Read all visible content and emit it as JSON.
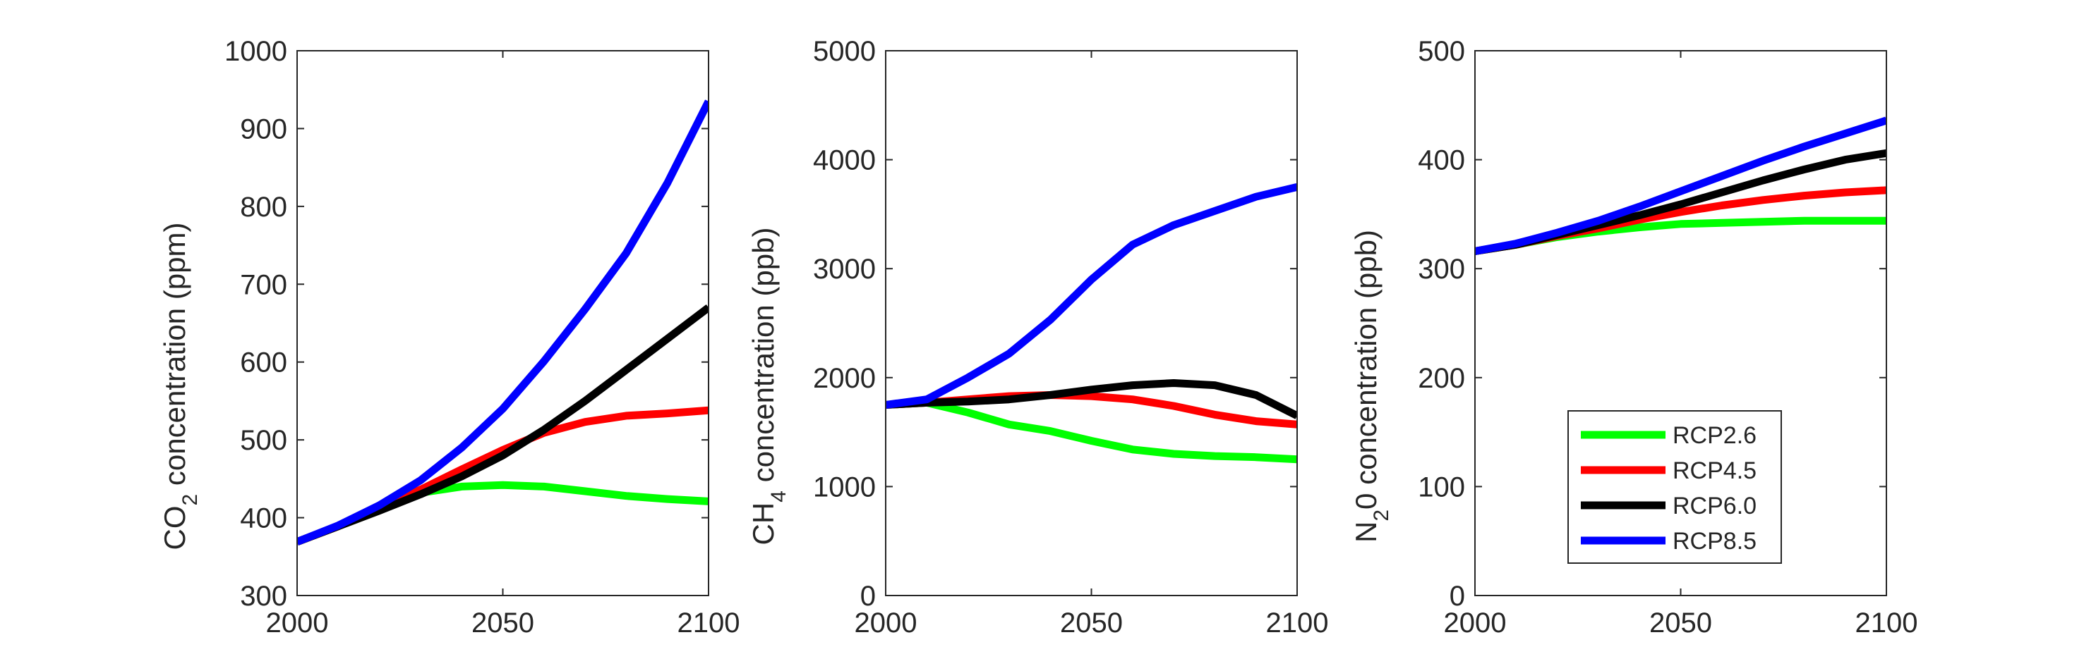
{
  "colors": {
    "RCP2.6": "#00ff00",
    "RCP4.5": "#ff0000",
    "RCP6.0": "#000000",
    "RCP8.5": "#0000ff",
    "axis": "#262626",
    "background": "#ffffff"
  },
  "chart_data": [
    {
      "type": "line",
      "ylabel_main": "CO",
      "ylabel_sub": "2",
      "ylabel_rest": " concentration (ppm)",
      "xlim": [
        2000,
        2100
      ],
      "ylim": [
        300,
        1000
      ],
      "xticks": [
        2000,
        2050,
        2100
      ],
      "yticks": [
        300,
        400,
        500,
        600,
        700,
        800,
        900,
        1000
      ],
      "grid": false,
      "series": [
        {
          "name": "RCP2.6",
          "x": [
            2000,
            2010,
            2020,
            2030,
            2040,
            2050,
            2060,
            2070,
            2080,
            2090,
            2100
          ],
          "values": [
            369,
            389,
            412,
            432,
            440,
            442,
            440,
            434,
            428,
            424,
            421
          ]
        },
        {
          "name": "RCP4.5",
          "x": [
            2000,
            2010,
            2020,
            2030,
            2040,
            2050,
            2060,
            2070,
            2080,
            2090,
            2100
          ],
          "values": [
            369,
            389,
            412,
            436,
            462,
            487,
            509,
            523,
            531,
            534,
            538
          ]
        },
        {
          "name": "RCP6.0",
          "x": [
            2000,
            2010,
            2020,
            2030,
            2040,
            2050,
            2060,
            2070,
            2080,
            2090,
            2100
          ],
          "values": [
            369,
            389,
            409,
            430,
            453,
            480,
            513,
            550,
            590,
            630,
            670
          ]
        },
        {
          "name": "RCP8.5",
          "x": [
            2000,
            2010,
            2020,
            2030,
            2040,
            2050,
            2060,
            2070,
            2080,
            2090,
            2100
          ],
          "values": [
            369,
            390,
            416,
            448,
            490,
            540,
            601,
            668,
            740,
            830,
            935
          ]
        }
      ]
    },
    {
      "type": "line",
      "ylabel_main": "CH",
      "ylabel_sub": "4",
      "ylabel_rest": " concentration (ppb)",
      "xlim": [
        2000,
        2100
      ],
      "ylim": [
        0,
        5000
      ],
      "xticks": [
        2000,
        2050,
        2100
      ],
      "yticks": [
        0,
        1000,
        2000,
        3000,
        4000,
        5000
      ],
      "grid": false,
      "series": [
        {
          "name": "RCP2.6",
          "x": [
            2000,
            2010,
            2020,
            2030,
            2040,
            2050,
            2060,
            2070,
            2080,
            2090,
            2100
          ],
          "values": [
            1750,
            1770,
            1680,
            1570,
            1510,
            1420,
            1340,
            1300,
            1280,
            1270,
            1250
          ]
        },
        {
          "name": "RCP4.5",
          "x": [
            2000,
            2010,
            2020,
            2030,
            2040,
            2050,
            2060,
            2070,
            2080,
            2090,
            2100
          ],
          "values": [
            1750,
            1770,
            1800,
            1830,
            1840,
            1830,
            1800,
            1740,
            1660,
            1600,
            1570
          ]
        },
        {
          "name": "RCP6.0",
          "x": [
            2000,
            2010,
            2020,
            2030,
            2040,
            2050,
            2060,
            2070,
            2080,
            2090,
            2100
          ],
          "values": [
            1750,
            1770,
            1780,
            1800,
            1840,
            1890,
            1930,
            1950,
            1930,
            1840,
            1650
          ]
        },
        {
          "name": "RCP8.5",
          "x": [
            2000,
            2010,
            2020,
            2030,
            2040,
            2050,
            2060,
            2070,
            2080,
            2090,
            2100
          ],
          "values": [
            1750,
            1800,
            2000,
            2220,
            2530,
            2900,
            3220,
            3400,
            3530,
            3660,
            3750
          ]
        }
      ]
    },
    {
      "type": "line",
      "ylabel_main": "N",
      "ylabel_sub": "2",
      "ylabel_rest": "0 concentration (ppb)",
      "xlim": [
        2000,
        2100
      ],
      "ylim": [
        0,
        500
      ],
      "xticks": [
        2000,
        2050,
        2100
      ],
      "yticks": [
        0,
        100,
        200,
        300,
        400,
        500
      ],
      "grid": false,
      "legend": "lower-right",
      "series": [
        {
          "name": "RCP2.6",
          "x": [
            2000,
            2010,
            2020,
            2030,
            2040,
            2050,
            2060,
            2070,
            2080,
            2090,
            2100
          ],
          "values": [
            316,
            322,
            329,
            334,
            338,
            341,
            342,
            343,
            344,
            344,
            344
          ]
        },
        {
          "name": "RCP4.5",
          "x": [
            2000,
            2010,
            2020,
            2030,
            2040,
            2050,
            2060,
            2070,
            2080,
            2090,
            2100
          ],
          "values": [
            316,
            322,
            330,
            337,
            345,
            352,
            358,
            363,
            367,
            370,
            372
          ]
        },
        {
          "name": "RCP6.0",
          "x": [
            2000,
            2010,
            2020,
            2030,
            2040,
            2050,
            2060,
            2070,
            2080,
            2090,
            2100
          ],
          "values": [
            316,
            322,
            331,
            340,
            349,
            359,
            370,
            381,
            391,
            400,
            406
          ]
        },
        {
          "name": "RCP8.5",
          "x": [
            2000,
            2010,
            2020,
            2030,
            2040,
            2050,
            2060,
            2070,
            2080,
            2090,
            2100
          ],
          "values": [
            316,
            323,
            333,
            344,
            357,
            371,
            385,
            399,
            412,
            424,
            436
          ]
        }
      ]
    }
  ]
}
